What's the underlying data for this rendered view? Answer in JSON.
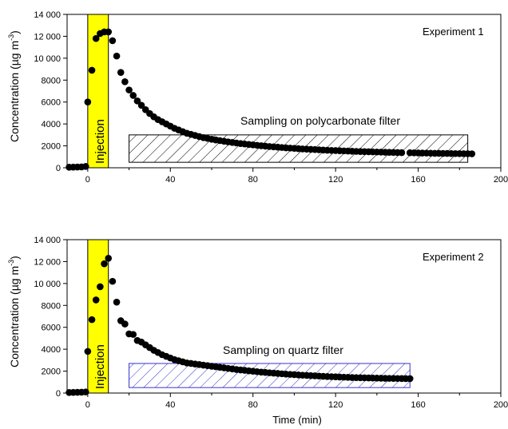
{
  "chart_data": [
    {
      "type": "scatter",
      "annotation": "Experiment 1",
      "xlabel": "",
      "ylabel": "Concentration (µg m⁻³)",
      "ylabel_main": "Concentration (µg m",
      "ylabel_sup": "-3",
      "ylabel_close": ")",
      "xlim": [
        -10,
        200
      ],
      "ylim": [
        0,
        14000
      ],
      "xticks": [
        0,
        40,
        80,
        120,
        160,
        200
      ],
      "yticks": [
        0,
        2000,
        4000,
        6000,
        8000,
        10000,
        12000,
        14000
      ],
      "ytick_labels": [
        "0",
        "2000",
        "4000",
        "6000",
        "8000",
        "10 000",
        "12 000",
        "14 000"
      ],
      "injection": {
        "label": "Injection",
        "x": [
          0,
          10
        ],
        "color": "#ffff00"
      },
      "sampling": {
        "label": "Sampling on polycarbonate filter",
        "x": [
          20,
          184
        ],
        "y": [
          500,
          3000
        ],
        "hatch_color": "#000000"
      },
      "points": [
        [
          -9,
          50
        ],
        [
          -7,
          60
        ],
        [
          -5,
          70
        ],
        [
          -3,
          80
        ],
        [
          -1,
          120
        ],
        [
          0,
          6000
        ],
        [
          2,
          8900
        ],
        [
          4,
          11800
        ],
        [
          6,
          12250
        ],
        [
          8,
          12400
        ],
        [
          10,
          12400
        ],
        [
          12,
          11600
        ],
        [
          14,
          10200
        ],
        [
          16,
          8700
        ],
        [
          18,
          7850
        ],
        [
          20,
          7100
        ],
        [
          22,
          6600
        ],
        [
          24,
          6100
        ],
        [
          26,
          5700
        ],
        [
          28,
          5300
        ],
        [
          30,
          4950
        ],
        [
          32,
          4650
        ],
        [
          34,
          4400
        ],
        [
          36,
          4200
        ],
        [
          38,
          4000
        ],
        [
          40,
          3800
        ],
        [
          42,
          3600
        ],
        [
          44,
          3450
        ],
        [
          46,
          3300
        ],
        [
          48,
          3150
        ],
        [
          50,
          3050
        ],
        [
          52,
          2950
        ],
        [
          54,
          2850
        ],
        [
          56,
          2750
        ],
        [
          58,
          2680
        ],
        [
          60,
          2600
        ],
        [
          62,
          2540
        ],
        [
          64,
          2480
        ],
        [
          66,
          2420
        ],
        [
          68,
          2360
        ],
        [
          70,
          2310
        ],
        [
          72,
          2260
        ],
        [
          74,
          2210
        ],
        [
          76,
          2170
        ],
        [
          78,
          2130
        ],
        [
          80,
          2090
        ],
        [
          82,
          2050
        ],
        [
          84,
          2010
        ],
        [
          86,
          1975
        ],
        [
          88,
          1940
        ],
        [
          90,
          1910
        ],
        [
          92,
          1880
        ],
        [
          94,
          1850
        ],
        [
          96,
          1820
        ],
        [
          98,
          1795
        ],
        [
          100,
          1770
        ],
        [
          102,
          1745
        ],
        [
          104,
          1720
        ],
        [
          106,
          1700
        ],
        [
          108,
          1680
        ],
        [
          110,
          1660
        ],
        [
          112,
          1640
        ],
        [
          114,
          1620
        ],
        [
          116,
          1600
        ],
        [
          118,
          1585
        ],
        [
          120,
          1570
        ],
        [
          122,
          1555
        ],
        [
          124,
          1540
        ],
        [
          126,
          1525
        ],
        [
          128,
          1510
        ],
        [
          130,
          1495
        ],
        [
          132,
          1480
        ],
        [
          134,
          1470
        ],
        [
          136,
          1460
        ],
        [
          138,
          1450
        ],
        [
          140,
          1440
        ],
        [
          142,
          1430
        ],
        [
          144,
          1420
        ],
        [
          146,
          1410
        ],
        [
          148,
          1400
        ],
        [
          150,
          1390
        ],
        [
          152,
          1380
        ],
        [
          156,
          1370
        ],
        [
          158,
          1360
        ],
        [
          160,
          1350
        ],
        [
          162,
          1345
        ],
        [
          164,
          1340
        ],
        [
          166,
          1330
        ],
        [
          168,
          1320
        ],
        [
          170,
          1315
        ],
        [
          172,
          1310
        ],
        [
          174,
          1305
        ],
        [
          176,
          1300
        ],
        [
          178,
          1295
        ],
        [
          180,
          1290
        ],
        [
          182,
          1285
        ],
        [
          184,
          1280
        ],
        [
          186,
          1275
        ]
      ]
    },
    {
      "type": "scatter",
      "annotation": "Experiment 2",
      "xlabel": "Time (min)",
      "ylabel": "Concentration (µg m⁻³)",
      "ylabel_main": "Concentration (µg m",
      "ylabel_sup": "-3",
      "ylabel_close": ")",
      "xlim": [
        -10,
        200
      ],
      "ylim": [
        0,
        14000
      ],
      "xticks": [
        0,
        40,
        80,
        120,
        160,
        200
      ],
      "yticks": [
        0,
        2000,
        4000,
        6000,
        8000,
        10000,
        12000,
        14000
      ],
      "ytick_labels": [
        "0",
        "2000",
        "4000",
        "6000",
        "8000",
        "10 000",
        "12 000",
        "14 000"
      ],
      "injection": {
        "label": "Injection",
        "x": [
          0,
          10
        ],
        "color": "#ffff00"
      },
      "sampling": {
        "label": "Sampling on quartz filter",
        "x": [
          20,
          156
        ],
        "y": [
          500,
          2700
        ],
        "hatch_color": "#3333cc"
      },
      "points": [
        [
          -9,
          50
        ],
        [
          -7,
          60
        ],
        [
          -5,
          70
        ],
        [
          -3,
          80
        ],
        [
          -1,
          100
        ],
        [
          0,
          3800
        ],
        [
          2,
          6700
        ],
        [
          4,
          8500
        ],
        [
          6,
          9700
        ],
        [
          8,
          11800
        ],
        [
          10,
          12300
        ],
        [
          12,
          10200
        ],
        [
          14,
          8300
        ],
        [
          16,
          6600
        ],
        [
          18,
          6300
        ],
        [
          20,
          5400
        ],
        [
          22,
          5350
        ],
        [
          24,
          4800
        ],
        [
          26,
          4650
        ],
        [
          28,
          4400
        ],
        [
          30,
          4150
        ],
        [
          32,
          3900
        ],
        [
          34,
          3700
        ],
        [
          36,
          3500
        ],
        [
          38,
          3350
        ],
        [
          40,
          3200
        ],
        [
          42,
          3050
        ],
        [
          44,
          2950
        ],
        [
          46,
          2850
        ],
        [
          48,
          2750
        ],
        [
          50,
          2700
        ],
        [
          52,
          2650
        ],
        [
          54,
          2600
        ],
        [
          56,
          2550
        ],
        [
          58,
          2500
        ],
        [
          60,
          2450
        ],
        [
          62,
          2400
        ],
        [
          64,
          2350
        ],
        [
          66,
          2300
        ],
        [
          68,
          2250
        ],
        [
          70,
          2200
        ],
        [
          72,
          2150
        ],
        [
          74,
          2110
        ],
        [
          76,
          2070
        ],
        [
          78,
          2030
        ],
        [
          80,
          1990
        ],
        [
          82,
          1950
        ],
        [
          84,
          1910
        ],
        [
          86,
          1880
        ],
        [
          88,
          1850
        ],
        [
          90,
          1820
        ],
        [
          92,
          1790
        ],
        [
          94,
          1760
        ],
        [
          96,
          1730
        ],
        [
          98,
          1705
        ],
        [
          100,
          1680
        ],
        [
          102,
          1655
        ],
        [
          104,
          1630
        ],
        [
          106,
          1610
        ],
        [
          108,
          1590
        ],
        [
          110,
          1570
        ],
        [
          112,
          1550
        ],
        [
          114,
          1530
        ],
        [
          116,
          1510
        ],
        [
          118,
          1495
        ],
        [
          120,
          1480
        ],
        [
          122,
          1465
        ],
        [
          124,
          1450
        ],
        [
          126,
          1435
        ],
        [
          128,
          1420
        ],
        [
          130,
          1410
        ],
        [
          132,
          1400
        ],
        [
          134,
          1390
        ],
        [
          136,
          1380
        ],
        [
          138,
          1370
        ],
        [
          140,
          1360
        ],
        [
          142,
          1350
        ],
        [
          144,
          1345
        ],
        [
          146,
          1340
        ],
        [
          148,
          1335
        ],
        [
          150,
          1330
        ],
        [
          152,
          1325
        ],
        [
          154,
          1320
        ],
        [
          156,
          1315
        ]
      ]
    }
  ]
}
